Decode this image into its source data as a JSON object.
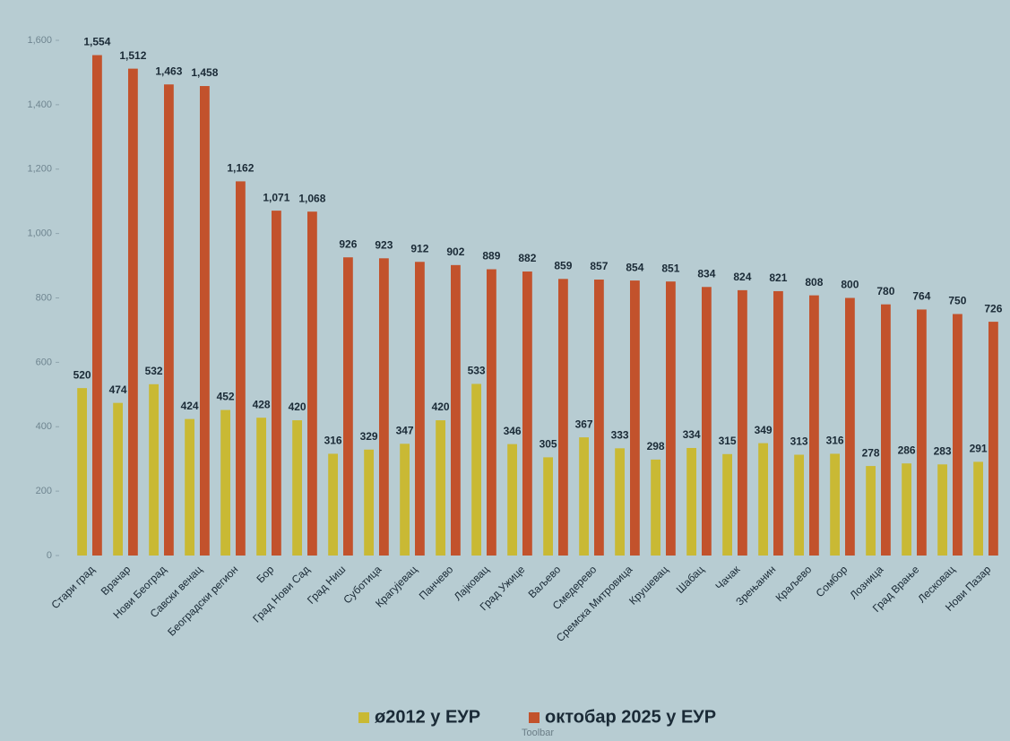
{
  "chart_data": {
    "type": "bar",
    "categories": [
      "Стари град",
      "Врачар",
      "Нови Београд",
      "Савски венац",
      "Београдски регион",
      "Бор",
      "Град Нови Сад",
      "Град Ниш",
      "Суботица",
      "Крагујевац",
      "Панчево",
      "Лајковац",
      "Град Ужице",
      "Ваљево",
      "Смедерево",
      "Сремска Митровица",
      "Крушевац",
      "Шабац",
      "Чачак",
      "Зрењанин",
      "Краљево",
      "Сомбор",
      "Лозница",
      "Град Врање",
      "Лесковац",
      "Нови Пазар"
    ],
    "series": [
      {
        "name": "ø2012 у ЕУР",
        "color": "#c9b934",
        "values": [
          520,
          474,
          532,
          424,
          452,
          428,
          420,
          316,
          329,
          347,
          420,
          533,
          346,
          305,
          367,
          333,
          298,
          334,
          315,
          349,
          313,
          316,
          278,
          286,
          283,
          291
        ]
      },
      {
        "name": "октобар 2025 у ЕУР",
        "color": "#c2522c",
        "values": [
          1554,
          1512,
          1463,
          1458,
          1162,
          1071,
          1068,
          926,
          923,
          912,
          902,
          889,
          882,
          859,
          857,
          854,
          851,
          834,
          824,
          821,
          808,
          800,
          780,
          764,
          750,
          726
        ],
        "value_labels": [
          "1,554",
          "1,512",
          "1,463",
          "1,458",
          "1,162",
          "1,071",
          "1,068",
          "926",
          "923",
          "912",
          "902",
          "889",
          "882",
          "859",
          "857",
          "854",
          "851",
          "834",
          "824",
          "821",
          "808",
          "800",
          "780",
          "764",
          "750",
          "726"
        ]
      }
    ],
    "ylim": [
      0,
      1600
    ],
    "yticks": [
      0,
      200,
      400,
      600,
      800,
      {
        "value": 1000,
        "label": "1,000"
      },
      {
        "value": 1200,
        "label": "1,200"
      },
      {
        "value": 1400,
        "label": "1,400"
      },
      {
        "value": 1600,
        "label": "1,600"
      }
    ],
    "grid": false,
    "legend": "bottom"
  },
  "overlay_text": "Toolbar"
}
